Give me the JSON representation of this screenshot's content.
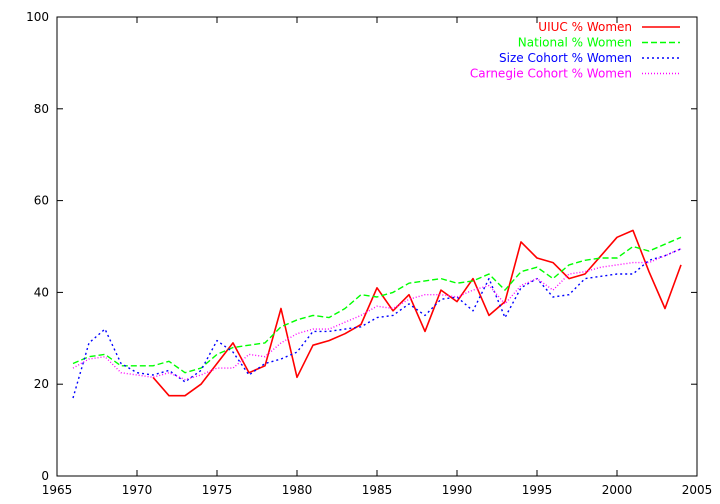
{
  "chart_data": {
    "type": "line",
    "title": "",
    "xlabel": "",
    "ylabel": "",
    "xlim": [
      1965,
      2005
    ],
    "ylim": [
      0,
      100
    ],
    "xticks": [
      "1965",
      "1970",
      "1975",
      "1980",
      "1985",
      "1990",
      "1995",
      "2000",
      "2005"
    ],
    "yticks": [
      "0",
      "20",
      "40",
      "60",
      "80",
      "100"
    ],
    "grid": false,
    "legend_position": "top-right",
    "series": [
      {
        "name": "UIUC % Women",
        "color": "#ff0000",
        "style": "solid",
        "x": [
          1971,
          1972,
          1973,
          1974,
          1975,
          1976,
          1977,
          1978,
          1979,
          1980,
          1981,
          1982,
          1983,
          1984,
          1985,
          1986,
          1987,
          1988,
          1989,
          1990,
          1991,
          1992,
          1993,
          1994,
          1995,
          1996,
          1997,
          1998,
          1999,
          2000,
          2001,
          2002,
          2003,
          2004
        ],
        "y": [
          21.5,
          17.5,
          17.5,
          20.0,
          24.5,
          29.0,
          22.5,
          24.0,
          36.5,
          21.5,
          28.5,
          29.5,
          31.0,
          33.0,
          41.0,
          36.0,
          39.5,
          31.5,
          40.5,
          38.0,
          43.0,
          35.0,
          38.0,
          51.0,
          47.5,
          46.5,
          43.0,
          44.0,
          48.0,
          52.0,
          53.5,
          44.5,
          36.5,
          46.0
        ]
      },
      {
        "name": "National % Women",
        "color": "#00ff00",
        "style": "dashed",
        "x": [
          1966,
          1967,
          1968,
          1969,
          1970,
          1971,
          1972,
          1973,
          1974,
          1975,
          1976,
          1977,
          1978,
          1979,
          1980,
          1981,
          1982,
          1983,
          1984,
          1985,
          1986,
          1987,
          1988,
          1989,
          1990,
          1991,
          1992,
          1993,
          1994,
          1995,
          1996,
          1997,
          1998,
          1999,
          2000,
          2001,
          2002,
          2003,
          2004
        ],
        "y": [
          24.5,
          26.0,
          26.5,
          24.0,
          24.0,
          24.0,
          25.0,
          22.5,
          23.5,
          26.5,
          28.0,
          28.5,
          29.0,
          32.5,
          34.0,
          35.0,
          34.5,
          36.5,
          39.5,
          39.0,
          40.0,
          42.0,
          42.5,
          43.0,
          42.0,
          42.5,
          44.0,
          40.5,
          44.5,
          45.5,
          43.0,
          46.0,
          47.0,
          47.5,
          47.5,
          50.0,
          49.0,
          50.5,
          52.0
        ]
      },
      {
        "name": "Size Cohort % Women",
        "color": "#0000ff",
        "style": "dotted",
        "x": [
          1966,
          1967,
          1968,
          1969,
          1970,
          1971,
          1972,
          1973,
          1974,
          1975,
          1976,
          1977,
          1978,
          1979,
          1980,
          1981,
          1982,
          1983,
          1984,
          1985,
          1986,
          1987,
          1988,
          1989,
          1990,
          1991,
          1992,
          1993,
          1994,
          1995,
          1996,
          1997,
          1998,
          1999,
          2000,
          2001,
          2002,
          2003,
          2004
        ],
        "y": [
          17.0,
          29.0,
          32.0,
          24.5,
          22.5,
          22.0,
          23.0,
          20.5,
          23.0,
          29.5,
          27.0,
          22.0,
          24.5,
          25.5,
          27.0,
          31.5,
          31.5,
          32.0,
          32.5,
          34.5,
          35.0,
          37.5,
          35.0,
          38.5,
          39.0,
          36.0,
          43.0,
          34.5,
          41.0,
          43.0,
          39.0,
          39.5,
          43.0,
          43.5,
          44.0,
          44.0,
          47.0,
          48.0,
          49.5
        ]
      },
      {
        "name": "Carnegie Cohort % Women",
        "color": "#ff00ff",
        "style": "dotted-fine",
        "x": [
          1966,
          1967,
          1968,
          1969,
          1970,
          1971,
          1972,
          1973,
          1974,
          1975,
          1976,
          1977,
          1978,
          1979,
          1980,
          1981,
          1982,
          1983,
          1984,
          1985,
          1986,
          1987,
          1988,
          1989,
          1990,
          1991,
          1992,
          1993,
          1994,
          1995,
          1996,
          1997,
          1998,
          1999,
          2000,
          2001,
          2002,
          2003,
          2004
        ],
        "y": [
          23.5,
          25.5,
          26.0,
          22.5,
          22.0,
          21.5,
          22.5,
          21.0,
          22.0,
          23.5,
          23.5,
          26.5,
          26.0,
          29.0,
          31.0,
          32.0,
          32.0,
          33.5,
          35.0,
          37.0,
          36.5,
          38.5,
          39.5,
          39.5,
          39.0,
          40.5,
          41.5,
          37.5,
          41.5,
          43.0,
          40.5,
          44.0,
          44.5,
          45.5,
          46.0,
          46.5,
          46.5,
          48.0,
          49.5
        ]
      }
    ]
  }
}
